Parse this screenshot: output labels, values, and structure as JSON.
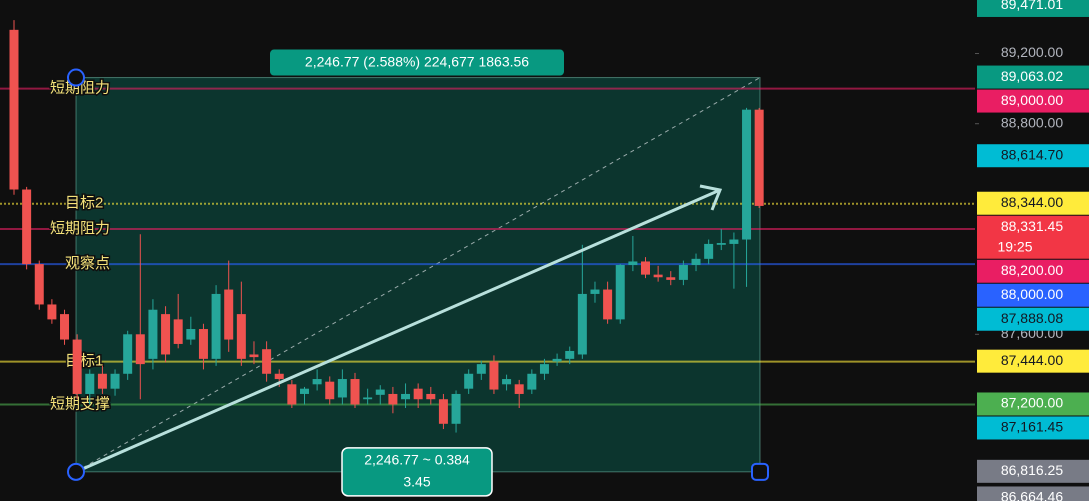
{
  "chart_data": {
    "type": "candlestick",
    "up_color": "#26a69a",
    "down_color": "#ef5350",
    "ylim": [
      86650,
      89505
    ],
    "yticks": [
      {
        "value": 89200,
        "label": "89,200.00"
      },
      {
        "value": 88800,
        "label": "88,800.00"
      },
      {
        "value": 87600,
        "label": "87,600.00"
      }
    ],
    "open": [
      89335,
      88425,
      88000,
      87770,
      87715,
      87570,
      87260,
      87375,
      87290,
      87375,
      87600,
      87460,
      87715,
      87685,
      87570,
      87630,
      87460,
      87855,
      87715,
      87485,
      87515,
      87375,
      87315,
      87260,
      87315,
      87330,
      87240,
      87345,
      87230,
      87255,
      87260,
      87230,
      87290,
      87260,
      87230,
      87090,
      87290,
      87375,
      87445,
      87315,
      87315,
      87285,
      87375,
      87445,
      87460,
      87485,
      87830,
      87855,
      87685,
      87995,
      88015,
      87940,
      87925,
      87910,
      87995,
      88030,
      88110,
      88115,
      88140,
      88880
    ],
    "high": [
      89390,
      88440,
      88020,
      87800,
      87740,
      87600,
      87400,
      87420,
      87400,
      87620,
      88170,
      87800,
      87760,
      87830,
      87700,
      87660,
      87880,
      88020,
      87900,
      87560,
      87560,
      87400,
      87340,
      87300,
      87400,
      87360,
      87400,
      87380,
      87290,
      87310,
      87300,
      87320,
      87320,
      87300,
      87260,
      87280,
      87400,
      87450,
      87480,
      87370,
      87340,
      87400,
      87460,
      87490,
      87530,
      88110,
      87900,
      87900,
      88000,
      88160,
      88040,
      87990,
      87960,
      88020,
      88060,
      88140,
      88200,
      88180,
      88890,
      88890
    ],
    "low": [
      88395,
      87970,
      87740,
      87660,
      87540,
      87230,
      87200,
      87260,
      87250,
      87340,
      87230,
      87400,
      87440,
      87520,
      87540,
      87400,
      87420,
      87500,
      87420,
      87430,
      87330,
      87300,
      87180,
      87200,
      87280,
      87200,
      87200,
      87180,
      87200,
      87200,
      87150,
      87180,
      87180,
      87200,
      87060,
      87040,
      87260,
      87340,
      87260,
      87280,
      87180,
      87260,
      87340,
      87420,
      87430,
      87460,
      87780,
      87660,
      87660,
      87960,
      87920,
      87900,
      87880,
      87880,
      87960,
      88000,
      88080,
      87860,
      87870,
      88320
    ],
    "close": [
      88425,
      88000,
      87770,
      87685,
      87570,
      87260,
      87375,
      87290,
      87375,
      87600,
      87430,
      87740,
      87485,
      87545,
      87630,
      87460,
      87830,
      87570,
      87460,
      87470,
      87375,
      87345,
      87200,
      87290,
      87345,
      87230,
      87345,
      87200,
      87240,
      87285,
      87200,
      87260,
      87230,
      87230,
      87090,
      87260,
      87375,
      87430,
      87285,
      87345,
      87260,
      87375,
      87430,
      87460,
      87505,
      87830,
      87855,
      87685,
      87995,
      88015,
      87940,
      87925,
      87910,
      87995,
      88030,
      88115,
      88120,
      88140,
      88880,
      88331.45
    ],
    "levels": [
      {
        "name": "短期阻力",
        "value": 89000,
        "value_label": "89,000.00",
        "color": "#e91e63"
      },
      {
        "name": "目标2",
        "value": 88344,
        "value_label": "88,344.00",
        "color": "#ffeb3b"
      },
      {
        "name": "短期阻力",
        "value": 88200,
        "value_label": "88,200.00",
        "color": "#e91e63"
      },
      {
        "name": "观察点",
        "value": 88000,
        "value_label": "88,000.00",
        "color": "#2962ff"
      },
      {
        "name": "目标1",
        "value": 87444,
        "value_label": "87,444.00",
        "color": "#ffeb3b"
      },
      {
        "name": "短期支撑",
        "value": 87200,
        "value_label": "87,200.00",
        "color": "#4caf50"
      }
    ],
    "price_tags": [
      {
        "value": 89471.01,
        "label": "89,471.01",
        "color": "#089981"
      },
      {
        "value": 89063.02,
        "label": "89,063.02",
        "color": "#089981"
      },
      {
        "value": 88614.7,
        "label": "88,614.70",
        "color": "#00bcd4"
      },
      {
        "value": 88331.45,
        "label": "88,331.45",
        "color": "#f23645",
        "countdown": "19:25"
      },
      {
        "value": 87888.08,
        "label": "87,888.08",
        "color": "#00bcd4"
      },
      {
        "value": 87161.45,
        "label": "87,161.45",
        "color": "#00bcd4"
      },
      {
        "value": 86816.25,
        "label": "86,816.25",
        "color": "#787b86"
      },
      {
        "value": 86664.46,
        "label": "86,664.46",
        "color": "#787b86"
      }
    ],
    "measure": {
      "top": 89063.02,
      "bottom": 86816.25,
      "label": "2,246.77 (2.588%) 224,677 1863.56",
      "bottom_label": [
        "2,246.77 ~ 0.384",
        "3.45"
      ]
    }
  }
}
